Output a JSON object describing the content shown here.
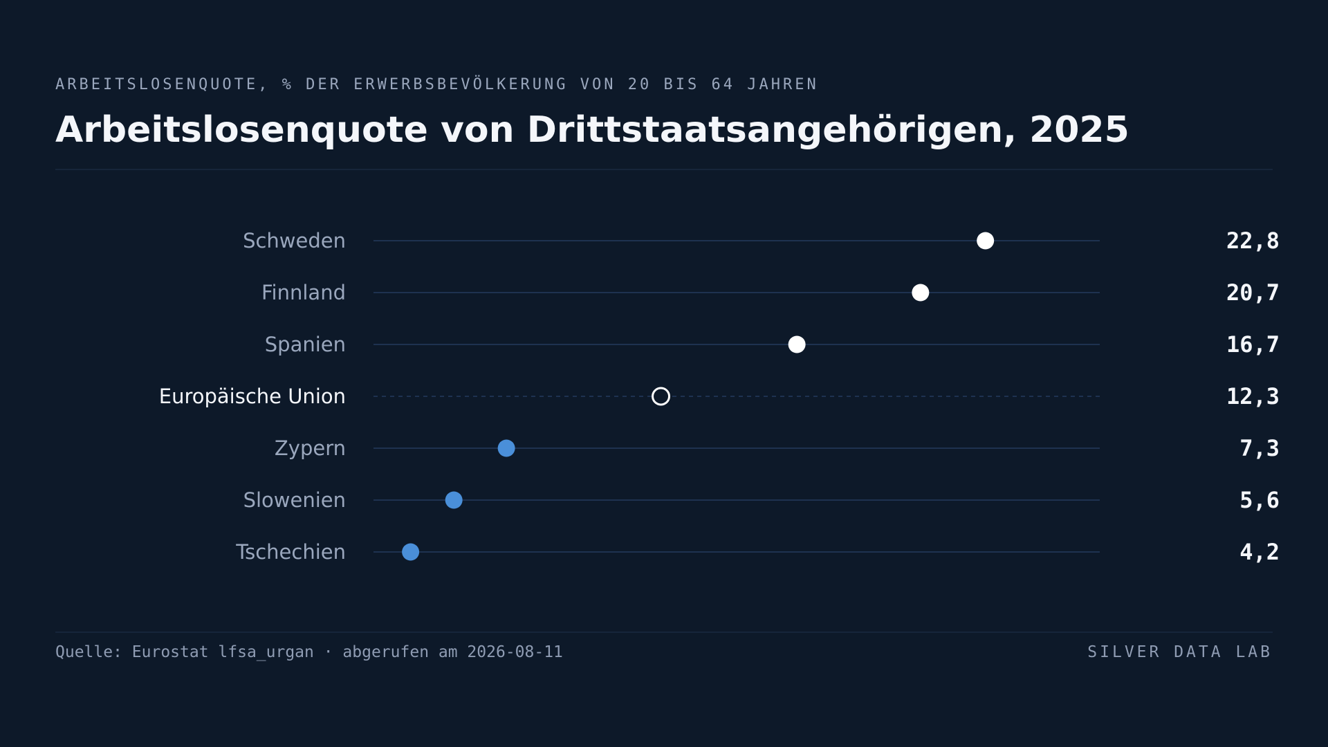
{
  "header": {
    "kicker": "ARBEITSLOSENQUOTE, % DER ERWERBSBEVÖLKERUNG VON 20 BIS 64 JAHREN",
    "title": "Arbeitslosenquote von Drittstaatsangehörigen, 2025"
  },
  "footer": {
    "source": "Quelle: Eurostat lfsa_urgan · abgerufen am 2026-08-11",
    "brand": "SILVER DATA LAB"
  },
  "chart_data": {
    "type": "dot",
    "title": "Arbeitslosenquote von Drittstaatsangehörigen, 2025",
    "subtitle": "ARBEITSLOSENQUOTE, % DER ERWERBSBEVÖLKERUNG VON 20 BIS 64 JAHREN",
    "xlim": [
      3,
      26.5
    ],
    "grid": false,
    "categories": [
      "Schweden",
      "Finnland",
      "Spanien",
      "Europäische Union",
      "Zypern",
      "Slowenien",
      "Tschechien"
    ],
    "values": [
      22.8,
      20.7,
      16.7,
      12.3,
      7.3,
      5.6,
      4.2
    ],
    "value_labels": [
      "22,8",
      "20,7",
      "16,7",
      "12,3",
      "7,3",
      "5,6",
      "4,2"
    ],
    "reference_category": "Europäische Union",
    "colors": {
      "above_reference": "#ffffff",
      "below_reference": "#4a8fd9",
      "reference_stroke": "#ffffff",
      "track": "#1e3250",
      "label": "#9aa7bd",
      "reference_label": "#f4f6fa",
      "value": "#f4f6fa"
    }
  }
}
